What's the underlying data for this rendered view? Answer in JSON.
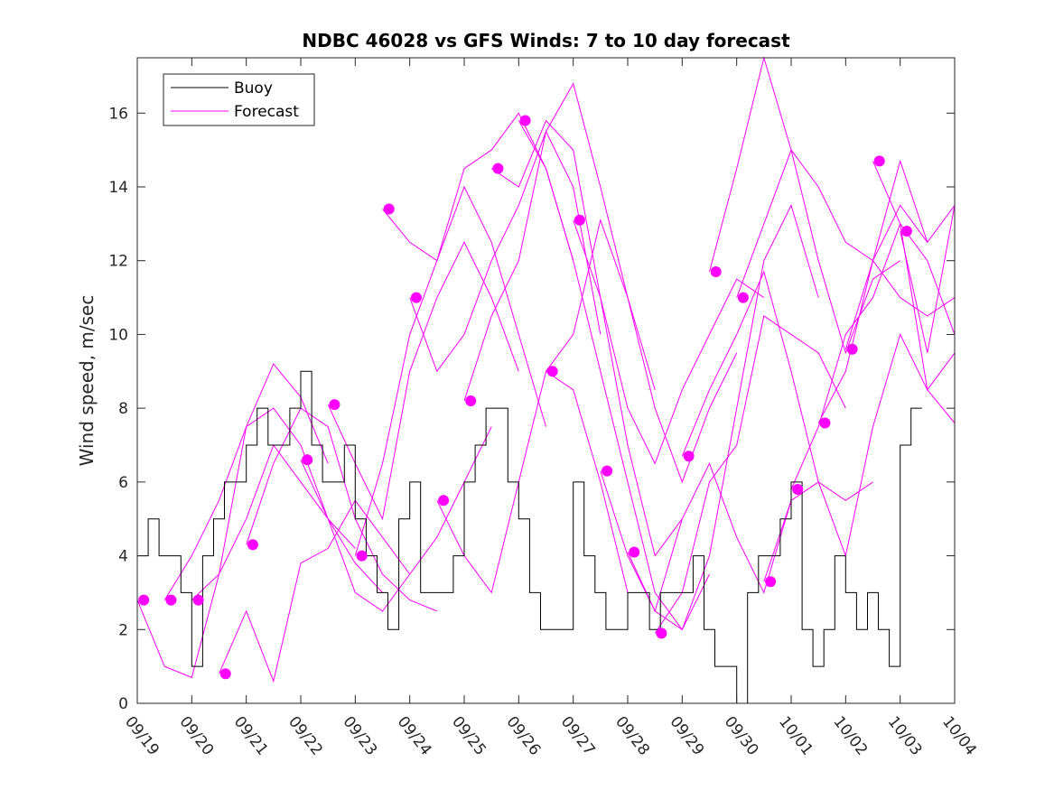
{
  "chart_data": {
    "type": "line",
    "title": "NDBC 46028 vs GFS Winds: 7 to 10 day forecast",
    "xlabel": "",
    "ylabel": "Wind speed, m/sec",
    "xlim": [
      0,
      15
    ],
    "ylim": [
      0,
      17.5
    ],
    "x_ticks": [
      0,
      1,
      2,
      3,
      4,
      5,
      6,
      7,
      8,
      9,
      10,
      11,
      12,
      13,
      14,
      15
    ],
    "x_tick_labels": [
      "09/19",
      "09/20",
      "09/21",
      "09/22",
      "09/23",
      "09/24",
      "09/25",
      "09/26",
      "09/27",
      "09/28",
      "09/29",
      "09/30",
      "10/01",
      "10/02",
      "10/03",
      "10/04"
    ],
    "y_ticks": [
      0,
      2,
      4,
      6,
      8,
      10,
      12,
      14,
      16
    ],
    "y_tick_labels": [
      "0",
      "2",
      "4",
      "6",
      "8",
      "10",
      "12",
      "14",
      "16"
    ],
    "legend": {
      "position": "top-left",
      "entries": [
        {
          "label": "Buoy",
          "color": "#000000"
        },
        {
          "label": "Forecast",
          "color": "#ff00ff"
        }
      ]
    },
    "colors": {
      "buoy": "#000000",
      "forecast": "#ff00ff"
    },
    "buoy_series": {
      "name": "Buoy",
      "x": [
        0,
        0.2,
        0.4,
        0.6,
        0.8,
        1,
        1.2,
        1.4,
        1.6,
        1.8,
        2,
        2.2,
        2.4,
        2.6,
        2.8,
        3,
        3.2,
        3.4,
        3.6,
        3.8,
        4,
        4.2,
        4.4,
        4.6,
        4.8,
        5,
        5.2,
        5.4,
        5.6,
        5.8,
        6,
        6.2,
        6.4,
        6.6,
        6.8,
        7,
        7.2,
        7.4,
        7.6,
        7.8,
        8,
        8.2,
        8.4,
        8.6,
        8.8,
        9,
        9.2,
        9.4,
        9.6,
        9.8,
        10,
        10.2,
        10.4,
        10.6,
        10.8,
        11,
        11.2,
        11.4,
        11.6,
        11.8,
        12,
        12.2,
        12.4,
        12.6,
        12.8,
        13,
        13.2,
        13.4,
        13.6,
        13.8,
        14,
        14.2,
        14.4
      ],
      "values": [
        4,
        5,
        4,
        4,
        3,
        1,
        4,
        5,
        6,
        6,
        7,
        8,
        7,
        7,
        8,
        9,
        7,
        6,
        6,
        7,
        5,
        4,
        3,
        2,
        5,
        6,
        3,
        3,
        3,
        4,
        6,
        7,
        8,
        8,
        6,
        5,
        3,
        2,
        2,
        2,
        6,
        4,
        3,
        2,
        2,
        3,
        3,
        2,
        3,
        3,
        3,
        4,
        2,
        1,
        1,
        0,
        3,
        4,
        4,
        5,
        6,
        2,
        1,
        2,
        4,
        3,
        2,
        3,
        2,
        1,
        7,
        8,
        8
      ]
    },
    "forecast_series": [
      {
        "name": "Forecast 1",
        "x": [
          0,
          0.5,
          1,
          1.5,
          2,
          2.5,
          3,
          3.5
        ],
        "values": [
          2.8,
          1.0,
          0.7,
          3.5,
          7.5,
          9.2,
          8.3,
          6.5
        ]
      },
      {
        "name": "Forecast 2",
        "x": [
          0.5,
          1,
          1.5,
          2,
          2.5,
          3,
          3.5,
          4
        ],
        "values": [
          2.8,
          4.0,
          5.5,
          7.5,
          8.0,
          7.0,
          5.0,
          4.2
        ]
      },
      {
        "name": "Forecast 3",
        "x": [
          1,
          1.5,
          2,
          2.5,
          3,
          3.5,
          4,
          4.5
        ],
        "values": [
          2.8,
          3.5,
          5.0,
          7.0,
          6.0,
          5.0,
          3.8,
          3.0
        ]
      },
      {
        "name": "Forecast 4",
        "x": [
          1.5,
          2,
          2.5,
          3,
          3.5,
          4,
          4.5,
          5
        ],
        "values": [
          0.8,
          2.5,
          0.6,
          3.8,
          4.2,
          5.5,
          4.5,
          3.5
        ]
      },
      {
        "name": "Forecast 5",
        "x": [
          2,
          2.5,
          3,
          3.5,
          4,
          4.5,
          5,
          5.5
        ],
        "values": [
          4.3,
          6.5,
          8.0,
          7.5,
          5.0,
          3.5,
          2.8,
          2.5
        ]
      },
      {
        "name": "Forecast 6",
        "x": [
          3,
          3.5,
          4,
          4.5,
          5,
          5.5,
          6,
          6.5
        ],
        "values": [
          6.6,
          5.0,
          3.0,
          2.5,
          3.5,
          4.5,
          6.0,
          7.5
        ]
      },
      {
        "name": "Forecast 7",
        "x": [
          3.5,
          4,
          4.5,
          5,
          5.5,
          6,
          6.5,
          7
        ],
        "values": [
          8.1,
          6.5,
          5.0,
          9.0,
          11.0,
          12.5,
          11.0,
          9.0
        ]
      },
      {
        "name": "Forecast 8",
        "x": [
          4,
          4.5,
          5,
          5.5,
          6,
          6.5,
          7,
          7.5
        ],
        "values": [
          4.0,
          6.5,
          10.0,
          12.0,
          14.0,
          12.5,
          10.0,
          7.5
        ]
      },
      {
        "name": "Forecast 9",
        "x": [
          4.5,
          5,
          5.5,
          6,
          6.5,
          7,
          7.5,
          8
        ],
        "values": [
          13.4,
          12.5,
          12.0,
          14.5,
          15.0,
          16.0,
          14.5,
          12.0
        ]
      },
      {
        "name": "Forecast 10",
        "x": [
          5,
          5.5,
          6,
          6.5,
          7,
          7.5,
          8,
          8.5
        ],
        "values": [
          11.0,
          9.0,
          10.0,
          12.0,
          13.5,
          15.5,
          14.0,
          10.0
        ]
      },
      {
        "name": "Forecast 11",
        "x": [
          5.5,
          6,
          6.5,
          7,
          7.5,
          8,
          8.5,
          9
        ],
        "values": [
          5.5,
          4.0,
          3.0,
          6.0,
          9.0,
          8.5,
          6.0,
          3.0
        ]
      },
      {
        "name": "Forecast 12",
        "x": [
          6,
          6.5,
          7,
          7.5,
          8,
          8.5,
          9,
          9.5
        ],
        "values": [
          8.2,
          10.5,
          12.0,
          15.5,
          16.8,
          14.0,
          11.0,
          8.5
        ]
      },
      {
        "name": "Forecast 13",
        "x": [
          6.5,
          7,
          7.5,
          8,
          8.5,
          9,
          9.5,
          10
        ],
        "values": [
          14.5,
          14.0,
          15.8,
          15.0,
          11.0,
          7.0,
          4.0,
          5.0
        ]
      },
      {
        "name": "Forecast 14",
        "x": [
          7,
          7.5,
          8,
          8.5,
          9,
          9.5,
          10,
          10.5
        ],
        "values": [
          15.8,
          14.5,
          12.0,
          9.0,
          6.0,
          3.0,
          2.0,
          3.5
        ]
      },
      {
        "name": "Forecast 15",
        "x": [
          7.5,
          8,
          8.5,
          9,
          9.5,
          10,
          10.5,
          11
        ],
        "values": [
          9.0,
          10.0,
          13.1,
          11.0,
          8.0,
          6.0,
          8.0,
          9.5
        ]
      },
      {
        "name": "Forecast 16",
        "x": [
          8,
          8.5,
          9,
          9.5,
          10,
          10.5,
          11,
          11.5
        ],
        "values": [
          13.1,
          11.0,
          8.0,
          6.5,
          8.5,
          10.0,
          11.5,
          11.0
        ]
      },
      {
        "name": "Forecast 17",
        "x": [
          8.5,
          9,
          9.5,
          10,
          10.5,
          11,
          11.5,
          12
        ],
        "values": [
          6.3,
          4.0,
          2.5,
          5.0,
          6.5,
          4.5,
          3.0,
          5.5
        ]
      },
      {
        "name": "Forecast 18",
        "x": [
          9,
          9.5,
          10,
          10.5,
          11,
          11.5,
          12,
          12.5
        ],
        "values": [
          4.1,
          2.5,
          2.0,
          4.0,
          8.0,
          12.0,
          13.5,
          11.0
        ]
      },
      {
        "name": "Forecast 19",
        "x": [
          9.5,
          10,
          10.5,
          11,
          11.5,
          12,
          12.5,
          13
        ],
        "values": [
          1.9,
          3.0,
          6.0,
          7.0,
          10.5,
          10.0,
          9.5,
          8.0
        ]
      },
      {
        "name": "Forecast 20",
        "x": [
          10,
          10.5,
          11,
          11.5,
          12,
          12.5,
          13,
          13.5
        ],
        "values": [
          6.7,
          8.5,
          10.0,
          11.7,
          9.0,
          6.0,
          5.5,
          6.0
        ]
      },
      {
        "name": "Forecast 21",
        "x": [
          10.5,
          11,
          11.5,
          12,
          12.5,
          13,
          13.5,
          14
        ],
        "values": [
          11.7,
          14.5,
          17.5,
          15.0,
          12.0,
          9.5,
          11.5,
          12.0
        ]
      },
      {
        "name": "Forecast 22",
        "x": [
          11,
          11.5,
          12,
          12.5,
          13,
          13.5,
          14,
          14.5
        ],
        "values": [
          11.0,
          13.0,
          15.0,
          14.0,
          12.5,
          12.0,
          13.5,
          12.5
        ]
      },
      {
        "name": "Forecast 23",
        "x": [
          11.5,
          12,
          12.5,
          13,
          13.5,
          14,
          14.5,
          15
        ],
        "values": [
          3.3,
          5.5,
          6.0,
          4.0,
          7.5,
          10.0,
          8.5,
          7.6
        ]
      },
      {
        "name": "Forecast 24",
        "x": [
          12,
          12.5,
          13,
          13.5,
          14,
          14.5,
          15
        ],
        "values": [
          5.8,
          7.5,
          10.0,
          11.0,
          13.0,
          12.0,
          10.0
        ]
      },
      {
        "name": "Forecast 25",
        "x": [
          12.5,
          13,
          13.5,
          14,
          14.5,
          15
        ],
        "values": [
          7.6,
          9.0,
          12.0,
          11.0,
          10.5,
          11.0
        ]
      },
      {
        "name": "Forecast 26",
        "x": [
          13,
          13.5,
          14,
          14.5,
          15
        ],
        "values": [
          9.6,
          12.0,
          14.7,
          12.5,
          13.5
        ]
      },
      {
        "name": "Forecast 27",
        "x": [
          13.5,
          14,
          14.5,
          15
        ],
        "values": [
          14.7,
          13.0,
          8.5,
          9.5
        ]
      },
      {
        "name": "Forecast 28",
        "x": [
          14,
          14.5,
          15
        ],
        "values": [
          12.8,
          9.5,
          13.5
        ]
      }
    ],
    "forecast_markers": {
      "name": "Forecast start points",
      "x": [
        0.12,
        0.62,
        1.12,
        1.62,
        2.12,
        3.12,
        3.62,
        4.12,
        4.62,
        5.12,
        5.62,
        6.12,
        6.62,
        7.12,
        7.62,
        8.12,
        8.62,
        9.12,
        9.62,
        10.12,
        10.62,
        11.12,
        11.62,
        12.12,
        12.62,
        13.12,
        13.62,
        14.12
      ],
      "values": [
        2.8,
        2.8,
        2.8,
        0.8,
        4.3,
        6.6,
        8.1,
        4.0,
        13.4,
        11.0,
        5.5,
        8.2,
        14.5,
        15.8,
        9.0,
        13.1,
        6.3,
        4.1,
        1.9,
        6.7,
        11.7,
        11.0,
        3.3,
        5.8,
        7.6,
        9.6,
        14.7,
        12.8
      ]
    }
  }
}
